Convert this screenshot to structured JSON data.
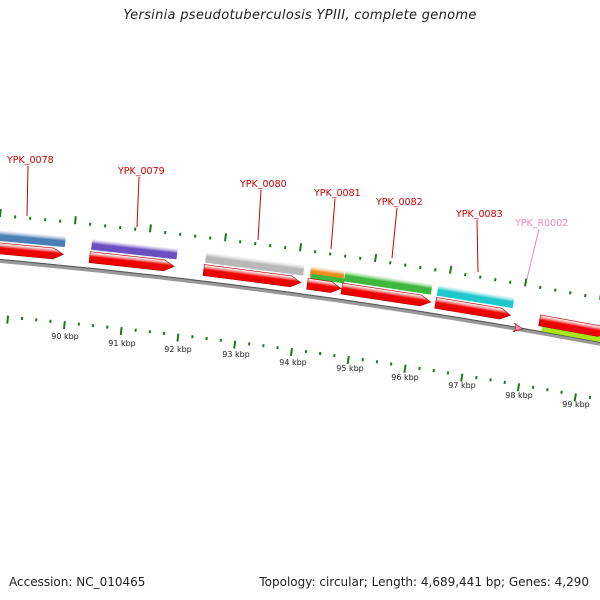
{
  "title": "Yersinia pseudotuberculosis YPIII, complete genome",
  "accession": "Accession: NC_010465",
  "topology": "Topology: circular; Length: 4,689,441 bp; Genes: 4,290",
  "colors": {
    "gene_label": "#cc0000",
    "rna_label": "#ee88bb",
    "tick": "#1a7a1a",
    "backbone": "#888888",
    "cds": "#ee0000"
  },
  "kbp_labels": [
    "90 kbp",
    "91 kbp",
    "92 kbp",
    "93 kbp",
    "94 kbp",
    "95 kbp",
    "96 kbp",
    "97 kbp",
    "98 kbp",
    "99 kbp"
  ],
  "genes": [
    {
      "label": "YPK_0078",
      "color": "#4a7fb5",
      "kind": "gene"
    },
    {
      "label": "YPK_0079",
      "color": "#6a4fc0",
      "kind": "gene"
    },
    {
      "label": "YPK_0080",
      "color": "#b8b8b8",
      "kind": "gene"
    },
    {
      "label": "YPK_0081",
      "color": "#f08c1a",
      "kind": "gene"
    },
    {
      "label": "YPK_0082",
      "color": "#3cb83c",
      "kind": "gene"
    },
    {
      "label": "YPK_0083",
      "color": "#20c8cc",
      "kind": "gene"
    },
    {
      "label": "YPK_R0002",
      "color": "#ee88bb",
      "kind": "rna"
    }
  ]
}
